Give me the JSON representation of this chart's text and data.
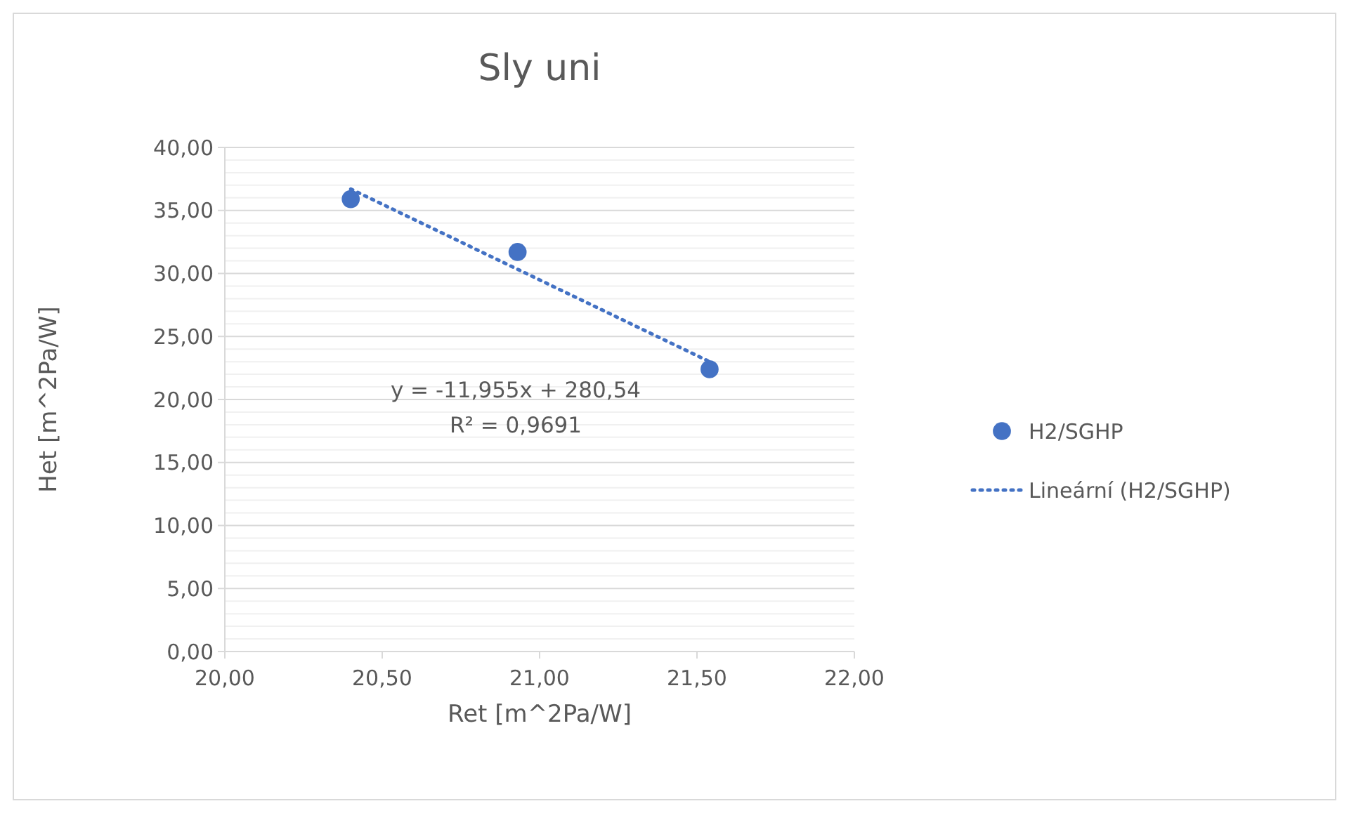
{
  "chart_data": {
    "type": "scatter",
    "title": "Sly uni",
    "xlabel": "Ret [m^2Pa/W]",
    "ylabel": "Het [m^2Pa/W]",
    "xlim": [
      20,
      22
    ],
    "xticks": [
      {
        "value": 20,
        "label": "20,00"
      },
      {
        "value": 20.5,
        "label": "20,50"
      },
      {
        "value": 21,
        "label": "21,00"
      },
      {
        "value": 21.5,
        "label": "21,50"
      },
      {
        "value": 22,
        "label": "22,00"
      }
    ],
    "ylim": [
      0,
      40
    ],
    "yticks": [
      {
        "value": 0,
        "label": "0,00"
      },
      {
        "value": 1,
        "label": null
      },
      {
        "value": 2,
        "label": null
      },
      {
        "value": 3,
        "label": null
      },
      {
        "value": 4,
        "label": null
      },
      {
        "value": 5,
        "label": "5,00"
      },
      {
        "value": 6,
        "label": null
      },
      {
        "value": 7,
        "label": null
      },
      {
        "value": 8,
        "label": null
      },
      {
        "value": 9,
        "label": null
      },
      {
        "value": 10,
        "label": "10,00"
      },
      {
        "value": 11,
        "label": null
      },
      {
        "value": 12,
        "label": null
      },
      {
        "value": 13,
        "label": null
      },
      {
        "value": 14,
        "label": null
      },
      {
        "value": 15,
        "label": "15,00"
      },
      {
        "value": 16,
        "label": null
      },
      {
        "value": 17,
        "label": null
      },
      {
        "value": 18,
        "label": null
      },
      {
        "value": 19,
        "label": null
      },
      {
        "value": 20,
        "label": "20,00"
      },
      {
        "value": 21,
        "label": null
      },
      {
        "value": 22,
        "label": null
      },
      {
        "value": 23,
        "label": null
      },
      {
        "value": 24,
        "label": null
      },
      {
        "value": 25,
        "label": "25,00"
      },
      {
        "value": 26,
        "label": null
      },
      {
        "value": 27,
        "label": null
      },
      {
        "value": 28,
        "label": null
      },
      {
        "value": 29,
        "label": null
      },
      {
        "value": 30,
        "label": "30,00"
      },
      {
        "value": 31,
        "label": null
      },
      {
        "value": 32,
        "label": null
      },
      {
        "value": 33,
        "label": null
      },
      {
        "value": 34,
        "label": null
      },
      {
        "value": 35,
        "label": "35,00"
      },
      {
        "value": 36,
        "label": null
      },
      {
        "value": 37,
        "label": null
      },
      {
        "value": 38,
        "label": null
      },
      {
        "value": 39,
        "label": null
      },
      {
        "value": 40,
        "label": "40,00"
      }
    ],
    "grid": "y",
    "legend": "right",
    "series": [
      {
        "name": "H2/SGHP",
        "color": "#4472c4",
        "marker": "circle",
        "x": [
          20.4,
          20.93,
          21.54
        ],
        "values": [
          35.9,
          31.7,
          22.4
        ]
      },
      {
        "name": "Lineární (H2/SGHP)",
        "type": "line",
        "color": "#4472c4",
        "line_style": "dotted",
        "marker": "none",
        "x": [
          20.4,
          21.54
        ],
        "values": [
          36.7,
          23.0
        ]
      }
    ],
    "annotations": [
      "y = -11,955x + 280,54",
      "R² = 0,9691"
    ]
  }
}
